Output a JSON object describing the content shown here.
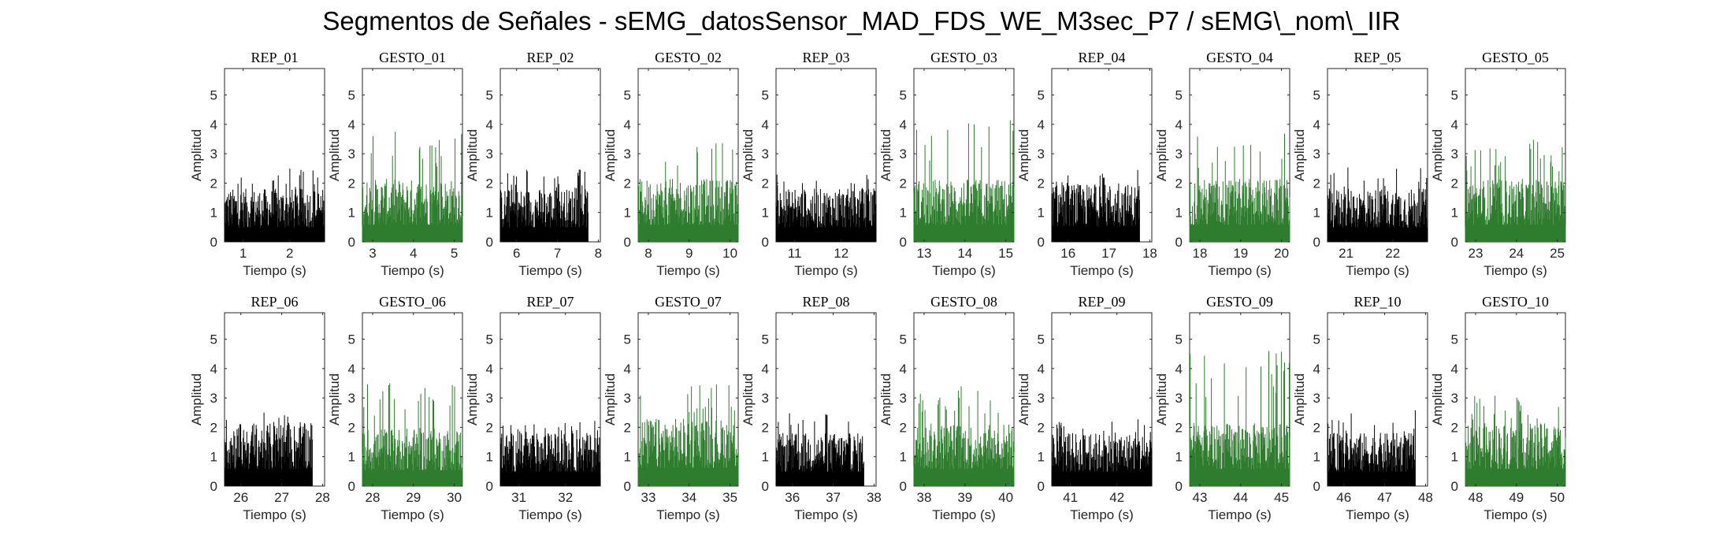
{
  "title": "Segmentos de Señales - sEMG_datosSensor_MAD_FDS_WE_M3sec_P7 / sEMG\\_nom\\_IIR",
  "colors": {
    "rep": "#000000",
    "gesto": "#2e7d2e",
    "axis": "#262626"
  },
  "chart_data": [
    {
      "type": "area",
      "title": "REP_01",
      "kind": "rep",
      "xlim": [
        0.6,
        2.75
      ],
      "ylim": [
        0,
        5.9
      ],
      "xticks": [
        1,
        2
      ],
      "yticks": [
        0,
        1,
        2,
        3,
        4,
        5
      ],
      "xlabel": "Tiempo (s)",
      "ylabel": "Amplitud",
      "x_range": [
        0.6,
        2.75
      ],
      "peak": 2.5,
      "base": 1.1
    },
    {
      "type": "area",
      "title": "GESTO_01",
      "kind": "gesto",
      "xlim": [
        2.75,
        5.2
      ],
      "ylim": [
        0,
        5.9
      ],
      "xticks": [
        3,
        4,
        5
      ],
      "yticks": [
        0,
        1,
        2,
        3,
        4,
        5
      ],
      "xlabel": "Tiempo (s)",
      "ylabel": "Amplitud",
      "x_range": [
        2.75,
        5.2
      ],
      "peak": 3.8,
      "base": 1.3
    },
    {
      "type": "area",
      "title": "REP_02",
      "kind": "rep",
      "xlim": [
        5.6,
        8.05
      ],
      "ylim": [
        0,
        5.9
      ],
      "xticks": [
        6,
        7,
        8
      ],
      "yticks": [
        0,
        1,
        2,
        3,
        4,
        5
      ],
      "xlabel": "Tiempo (s)",
      "ylabel": "Amplitud",
      "x_range": [
        5.6,
        7.75
      ],
      "peak": 2.5,
      "base": 1.1
    },
    {
      "type": "area",
      "title": "GESTO_02",
      "kind": "gesto",
      "xlim": [
        7.75,
        10.2
      ],
      "ylim": [
        0,
        5.9
      ],
      "xticks": [
        8,
        9,
        10
      ],
      "yticks": [
        0,
        1,
        2,
        3,
        4,
        5
      ],
      "xlabel": "Tiempo (s)",
      "ylabel": "Amplitud",
      "x_range": [
        7.75,
        10.2
      ],
      "peak": 3.5,
      "base": 1.3
    },
    {
      "type": "area",
      "title": "REP_03",
      "kind": "rep",
      "xlim": [
        10.6,
        12.75
      ],
      "ylim": [
        0,
        5.9
      ],
      "xticks": [
        11,
        12
      ],
      "yticks": [
        0,
        1,
        2,
        3,
        4,
        5
      ],
      "xlabel": "Tiempo (s)",
      "ylabel": "Amplitud",
      "x_range": [
        10.6,
        12.75
      ],
      "peak": 2.3,
      "base": 1.1
    },
    {
      "type": "area",
      "title": "GESTO_03",
      "kind": "gesto",
      "xlim": [
        12.75,
        15.2
      ],
      "ylim": [
        0,
        5.9
      ],
      "xticks": [
        13,
        14,
        15
      ],
      "yticks": [
        0,
        1,
        2,
        3,
        4,
        5
      ],
      "xlabel": "Tiempo (s)",
      "ylabel": "Amplitud",
      "x_range": [
        12.75,
        15.2
      ],
      "peak": 4.2,
      "base": 1.3
    },
    {
      "type": "area",
      "title": "REP_04",
      "kind": "rep",
      "xlim": [
        15.6,
        18.05
      ],
      "ylim": [
        0,
        5.9
      ],
      "xticks": [
        16,
        17,
        18
      ],
      "yticks": [
        0,
        1,
        2,
        3,
        4,
        5
      ],
      "xlabel": "Tiempo (s)",
      "ylabel": "Amplitud",
      "x_range": [
        15.6,
        17.75
      ],
      "peak": 2.5,
      "base": 1.2
    },
    {
      "type": "area",
      "title": "GESTO_04",
      "kind": "gesto",
      "xlim": [
        17.75,
        20.2
      ],
      "ylim": [
        0,
        5.9
      ],
      "xticks": [
        18,
        19,
        20
      ],
      "yticks": [
        0,
        1,
        2,
        3,
        4,
        5
      ],
      "xlabel": "Tiempo (s)",
      "ylabel": "Amplitud",
      "x_range": [
        17.75,
        20.2
      ],
      "peak": 3.7,
      "base": 1.3
    },
    {
      "type": "area",
      "title": "REP_05",
      "kind": "rep",
      "xlim": [
        20.6,
        22.75
      ],
      "ylim": [
        0,
        5.9
      ],
      "xticks": [
        21,
        22
      ],
      "yticks": [
        0,
        1,
        2,
        3,
        4,
        5
      ],
      "xlabel": "Tiempo (s)",
      "ylabel": "Amplitud",
      "x_range": [
        20.6,
        22.75
      ],
      "peak": 2.6,
      "base": 1.1
    },
    {
      "type": "area",
      "title": "GESTO_05",
      "kind": "gesto",
      "xlim": [
        22.75,
        25.2
      ],
      "ylim": [
        0,
        5.9
      ],
      "xticks": [
        23,
        24,
        25
      ],
      "yticks": [
        0,
        1,
        2,
        3,
        4,
        5
      ],
      "xlabel": "Tiempo (s)",
      "ylabel": "Amplitud",
      "x_range": [
        22.75,
        25.2
      ],
      "peak": 3.5,
      "base": 1.3
    },
    {
      "type": "area",
      "title": "REP_06",
      "kind": "rep",
      "xlim": [
        25.6,
        28.05
      ],
      "ylim": [
        0,
        5.9
      ],
      "xticks": [
        26,
        27,
        28
      ],
      "yticks": [
        0,
        1,
        2,
        3,
        4,
        5
      ],
      "xlabel": "Tiempo (s)",
      "ylabel": "Amplitud",
      "x_range": [
        25.6,
        27.75
      ],
      "peak": 2.5,
      "base": 1.3
    },
    {
      "type": "area",
      "title": "GESTO_06",
      "kind": "gesto",
      "xlim": [
        27.75,
        30.2
      ],
      "ylim": [
        0,
        5.9
      ],
      "xticks": [
        28,
        29,
        30
      ],
      "yticks": [
        0,
        1,
        2,
        3,
        4,
        5
      ],
      "xlabel": "Tiempo (s)",
      "ylabel": "Amplitud",
      "x_range": [
        27.75,
        30.2
      ],
      "peak": 3.5,
      "base": 1.2
    },
    {
      "type": "area",
      "title": "REP_07",
      "kind": "rep",
      "xlim": [
        30.6,
        32.75
      ],
      "ylim": [
        0,
        5.9
      ],
      "xticks": [
        31,
        32
      ],
      "yticks": [
        0,
        1,
        2,
        3,
        4,
        5
      ],
      "xlabel": "Tiempo (s)",
      "ylabel": "Amplitud",
      "x_range": [
        30.6,
        32.75
      ],
      "peak": 2.3,
      "base": 1.1
    },
    {
      "type": "area",
      "title": "GESTO_07",
      "kind": "gesto",
      "xlim": [
        32.75,
        35.2
      ],
      "ylim": [
        0,
        5.9
      ],
      "xticks": [
        33,
        34,
        35
      ],
      "yticks": [
        0,
        1,
        2,
        3,
        4,
        5
      ],
      "xlabel": "Tiempo (s)",
      "ylabel": "Amplitud",
      "x_range": [
        32.75,
        35.2
      ],
      "peak": 3.5,
      "base": 1.4
    },
    {
      "type": "area",
      "title": "REP_08",
      "kind": "rep",
      "xlim": [
        35.6,
        38.05
      ],
      "ylim": [
        0,
        5.9
      ],
      "xticks": [
        36,
        37,
        38
      ],
      "yticks": [
        0,
        1,
        2,
        3,
        4,
        5
      ],
      "xlabel": "Tiempo (s)",
      "ylabel": "Amplitud",
      "x_range": [
        35.6,
        37.75
      ],
      "peak": 2.5,
      "base": 1.1
    },
    {
      "type": "area",
      "title": "GESTO_08",
      "kind": "gesto",
      "xlim": [
        37.75,
        40.2
      ],
      "ylim": [
        0,
        5.9
      ],
      "xticks": [
        38,
        39,
        40
      ],
      "yticks": [
        0,
        1,
        2,
        3,
        4,
        5
      ],
      "xlabel": "Tiempo (s)",
      "ylabel": "Amplitud",
      "x_range": [
        37.75,
        40.2
      ],
      "peak": 3.6,
      "base": 1.3
    },
    {
      "type": "area",
      "title": "REP_09",
      "kind": "rep",
      "xlim": [
        40.6,
        42.75
      ],
      "ylim": [
        0,
        5.9
      ],
      "xticks": [
        41,
        42
      ],
      "yticks": [
        0,
        1,
        2,
        3,
        4,
        5
      ],
      "xlabel": "Tiempo (s)",
      "ylabel": "Amplitud",
      "x_range": [
        40.6,
        42.75
      ],
      "peak": 2.3,
      "base": 1.1
    },
    {
      "type": "area",
      "title": "GESTO_09",
      "kind": "gesto",
      "xlim": [
        42.75,
        45.2
      ],
      "ylim": [
        0,
        5.9
      ],
      "xticks": [
        43,
        44,
        45
      ],
      "yticks": [
        0,
        1,
        2,
        3,
        4,
        5
      ],
      "xlabel": "Tiempo (s)",
      "ylabel": "Amplitud",
      "x_range": [
        42.75,
        45.2
      ],
      "peak": 4.6,
      "base": 1.3
    },
    {
      "type": "area",
      "title": "REP_10",
      "kind": "rep",
      "xlim": [
        45.6,
        48.05
      ],
      "ylim": [
        0,
        5.9
      ],
      "xticks": [
        46,
        47,
        48
      ],
      "yticks": [
        0,
        1,
        2,
        3,
        4,
        5
      ],
      "xlabel": "Tiempo (s)",
      "ylabel": "Amplitud",
      "x_range": [
        45.6,
        47.75
      ],
      "peak": 2.6,
      "base": 1.1
    },
    {
      "type": "area",
      "title": "GESTO_10",
      "kind": "gesto",
      "xlim": [
        47.75,
        50.2
      ],
      "ylim": [
        0,
        5.9
      ],
      "xticks": [
        48,
        49,
        50
      ],
      "yticks": [
        0,
        1,
        2,
        3,
        4,
        5
      ],
      "xlabel": "Tiempo (s)",
      "ylabel": "Amplitud",
      "x_range": [
        47.75,
        50.2
      ],
      "peak": 3.1,
      "base": 1.3
    }
  ]
}
